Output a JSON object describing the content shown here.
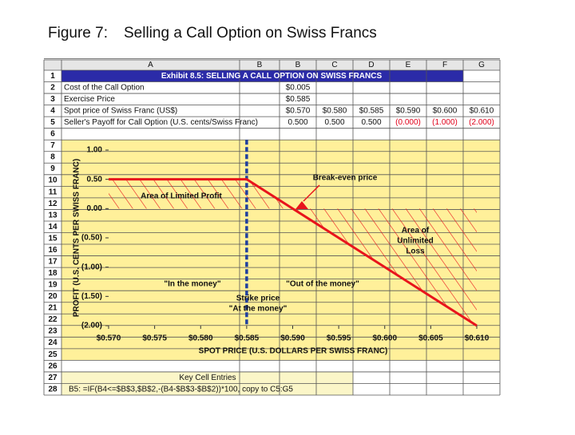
{
  "title": {
    "label": "Figure 7:",
    "text": "Selling a Call Option on Swiss Francs"
  },
  "sheet": {
    "columns": [
      "A",
      "B",
      "B",
      "C",
      "D",
      "E",
      "F",
      "G"
    ],
    "rows": [
      1,
      2,
      3,
      4,
      5,
      6,
      7,
      8,
      9,
      10,
      11,
      12,
      13,
      14,
      15,
      16,
      17,
      18,
      19,
      20,
      21,
      22,
      23,
      24,
      25,
      26,
      27,
      28
    ],
    "exhibit_title": "Exhibit 8.5: SELLING A CALL OPTION ON SWISS FRANCS",
    "cells": [
      {
        "label": "Cost of the Call Option",
        "values": [
          {
            "text": "$0.005"
          }
        ]
      },
      {
        "label": "Exercise Price",
        "values": [
          {
            "text": "$0.585"
          }
        ]
      },
      {
        "label": "Spot price of Swiss Franc (US$)",
        "values": [
          {
            "text": "$0.570"
          },
          {
            "text": "$0.580"
          },
          {
            "text": "$0.585"
          },
          {
            "text": "$0.590"
          },
          {
            "text": "$0.600"
          },
          {
            "text": "$0.610"
          }
        ]
      },
      {
        "label": "Seller's Payoff for Call Option (U.S. cents/Swiss Franc)",
        "values": [
          {
            "text": "0.500"
          },
          {
            "text": "0.500"
          },
          {
            "text": "0.500"
          },
          {
            "text": "(0.000)",
            "color": "#e0001a"
          },
          {
            "text": "(1.000)",
            "color": "#e0001a"
          },
          {
            "text": "(2.000)",
            "color": "#e0001a"
          }
        ]
      }
    ],
    "key_title": "Key Cell Entries",
    "key_formula": "B5:  =IF(B4<=$B$3,$B$2,-(B4-$B$3-$B$2))*100, copy to C5:G5"
  },
  "chart_data": {
    "type": "line",
    "x_label": "SPOT PRICE (U.S. DOLLARS PER SWISS FRANC)",
    "y_label": "PROFIT (U.S. CENTS PER SWISS FRANC)",
    "x": [
      0.57,
      0.575,
      0.58,
      0.585,
      0.59,
      0.595,
      0.6,
      0.605,
      0.61
    ],
    "series": [
      {
        "name": "Seller's Payoff",
        "color": "#e8141c",
        "values": [
          0.5,
          0.5,
          0.5,
          0.5,
          0,
          -0.5,
          -1,
          -1.5,
          -2
        ]
      }
    ],
    "strike": 0.585,
    "strike_color": "#1f3f9f",
    "xlim": [
      0.57,
      0.61
    ],
    "ylim": [
      -2,
      1
    ],
    "xticks": [
      {
        "value": 0.57,
        "label": "$0.570"
      },
      {
        "value": 0.575,
        "label": "$0.575"
      },
      {
        "value": 0.58,
        "label": "$0.580"
      },
      {
        "value": 0.585,
        "label": "$0.585"
      },
      {
        "value": 0.59,
        "label": "$0.590"
      },
      {
        "value": 0.595,
        "label": "$0.595"
      },
      {
        "value": 0.6,
        "label": "$0.600"
      },
      {
        "value": 0.605,
        "label": "$0.605"
      },
      {
        "value": 0.61,
        "label": "$0.610"
      }
    ],
    "yticks": [
      {
        "value": 1,
        "label": "1.00"
      },
      {
        "value": 0.5,
        "label": "0.50"
      },
      {
        "value": 0,
        "label": "0.00"
      },
      {
        "value": -0.5,
        "label": "(0.50)"
      },
      {
        "value": -1,
        "label": "(1.00)"
      },
      {
        "value": -1.5,
        "label": "(1.50)"
      },
      {
        "value": -2,
        "label": "(2.00)"
      }
    ],
    "annotations": [
      "Break-even price",
      "Area of Limited Profit",
      "Area of",
      "Unlimited",
      "Loss",
      "\"In the money\"",
      "\"Out of the money\"",
      "Strike price",
      "\"At the money\""
    ]
  }
}
